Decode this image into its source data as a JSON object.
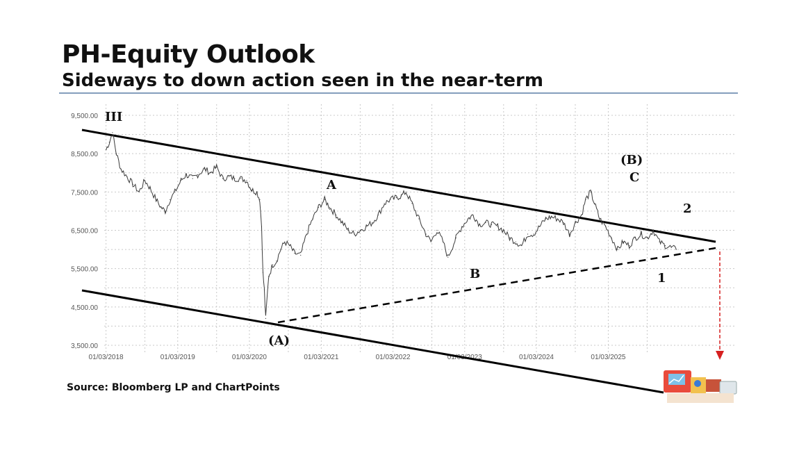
{
  "header": {
    "title": "PH-Equity Outlook",
    "subtitle": "Sideways to down action seen in the near-term"
  },
  "footer": {
    "source": "Source: Bloomberg LP and ChartPoints"
  },
  "colors": {
    "rule": "#5b7fa6",
    "price": "#3a3a3a",
    "trendline": "#000000",
    "arrow": "#d62020",
    "grid": "#c8c8c8"
  },
  "chart_data": {
    "type": "line",
    "title": "",
    "xlabel": "",
    "ylabel": "",
    "ylim": [
      3500,
      9500
    ],
    "xlim": [
      "2018-01-01",
      "2026-08-01"
    ],
    "grid": true,
    "yticks": [
      "9,500.00",
      "8,500.00",
      "7,500.00",
      "6,500.00",
      "5,500.00",
      "4,500.00",
      "3,500.00"
    ],
    "ytick_values": [
      9500,
      8500,
      7500,
      6500,
      5500,
      4500,
      3500
    ],
    "xticks": [
      "01/03/2018",
      "01/03/2019",
      "01/03/2020",
      "01/03/2021",
      "01/03/2022",
      "01/03/2023",
      "01/03/2024",
      "01/03/2025"
    ],
    "xtick_values": [
      "2018-01-03",
      "2019-01-03",
      "2020-01-03",
      "2021-01-03",
      "2022-01-03",
      "2023-01-03",
      "2024-01-03",
      "2025-01-03"
    ],
    "series": [
      {
        "x": [
          "2018-01-03",
          "2018-01-20",
          "2018-02-05",
          "2018-02-25",
          "2018-03-20",
          "2018-04-20",
          "2018-05-20",
          "2018-06-20",
          "2018-07-20",
          "2018-08-15",
          "2018-09-15",
          "2018-10-10",
          "2018-11-01",
          "2018-11-25",
          "2018-12-20",
          "2019-01-20",
          "2019-02-15",
          "2019-03-20",
          "2019-04-15",
          "2019-05-20",
          "2019-06-20",
          "2019-07-20",
          "2019-08-20",
          "2019-09-20",
          "2019-10-20",
          "2019-11-20",
          "2019-12-20",
          "2020-01-15",
          "2020-02-10",
          "2020-02-25",
          "2020-03-05",
          "2020-03-12",
          "2020-03-19",
          "2020-03-26",
          "2020-04-10",
          "2020-05-01",
          "2020-05-20",
          "2020-06-10",
          "2020-07-01",
          "2020-07-25",
          "2020-08-20",
          "2020-09-20",
          "2020-10-20",
          "2020-11-20",
          "2020-12-20",
          "2021-01-20",
          "2021-02-15",
          "2021-03-20",
          "2021-04-20",
          "2021-05-20",
          "2021-06-20",
          "2021-07-20",
          "2021-08-20",
          "2021-09-20",
          "2021-10-20",
          "2021-11-20",
          "2021-12-20",
          "2022-01-20",
          "2022-02-15",
          "2022-03-10",
          "2022-04-10",
          "2022-05-15",
          "2022-06-20",
          "2022-07-15",
          "2022-08-15",
          "2022-09-15",
          "2022-10-10",
          "2022-11-20",
          "2022-12-20",
          "2023-01-20",
          "2023-02-15",
          "2023-03-20",
          "2023-04-20",
          "2023-05-20",
          "2023-06-20",
          "2023-07-20",
          "2023-08-20",
          "2023-09-20",
          "2023-10-20",
          "2023-11-20",
          "2023-12-20",
          "2024-01-20",
          "2024-02-20",
          "2024-03-20",
          "2024-04-20",
          "2024-05-20",
          "2024-06-20",
          "2024-07-20",
          "2024-08-20",
          "2024-09-10",
          "2024-10-05",
          "2024-10-25",
          "2024-11-20",
          "2024-12-20",
          "2025-01-20",
          "2025-02-20",
          "2025-03-20",
          "2025-04-20",
          "2025-05-20",
          "2025-06-20",
          "2025-07-20",
          "2025-08-20",
          "2025-09-20",
          "2025-10-20",
          "2025-11-20",
          "2025-12-15"
        ],
        "values": [
          8600,
          8800,
          9050,
          8500,
          8100,
          7900,
          7700,
          7500,
          7800,
          7600,
          7300,
          7100,
          7000,
          7300,
          7500,
          7800,
          7950,
          7850,
          7950,
          8100,
          8000,
          8150,
          7850,
          7900,
          7850,
          7850,
          7800,
          7550,
          7500,
          7300,
          6600,
          5400,
          4950,
          4200,
          5300,
          5600,
          5700,
          6000,
          6200,
          6100,
          5900,
          5850,
          6400,
          6800,
          7100,
          7300,
          7100,
          6900,
          6700,
          6500,
          6400,
          6500,
          6600,
          6700,
          6900,
          7200,
          7300,
          7350,
          7400,
          7500,
          7200,
          6800,
          6400,
          6200,
          6500,
          6200,
          5800,
          6300,
          6600,
          6800,
          6900,
          6650,
          6700,
          6650,
          6600,
          6500,
          6300,
          6200,
          6100,
          6400,
          6400,
          6600,
          6800,
          6850,
          6800,
          6700,
          6400,
          6700,
          6900,
          7300,
          7500,
          7200,
          6800,
          6600,
          6300,
          6000,
          6200,
          6100,
          6300,
          6400,
          6300,
          6500,
          6200,
          6100,
          6050,
          6000
        ]
      }
    ],
    "annotations": [
      "III",
      "A",
      "B",
      "(A)",
      "(B)",
      "C",
      "1",
      "2"
    ]
  }
}
